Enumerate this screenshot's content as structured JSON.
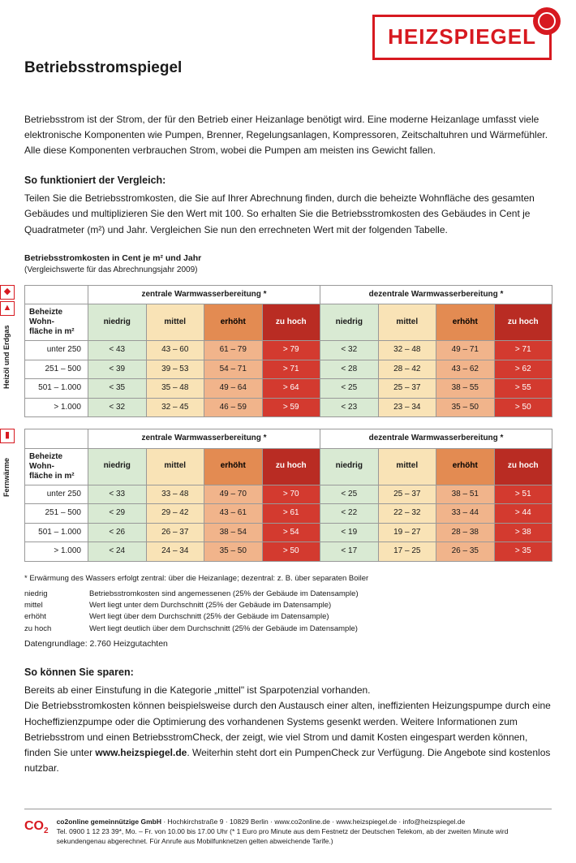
{
  "logo": {
    "text": "HEIZSPIEGEL"
  },
  "title": "Betriebsstromspiegel",
  "intro": "Betriebsstrom ist der Strom, der für den Betrieb einer Heizanlage benötigt wird. Eine moderne Heizanlage umfasst viele elektronische Komponenten wie Pumpen, Brenner, Regelungsanlagen, Kompressoren, Zeitschaltuhren und Wärmefühler. Alle diese Komponenten verbrauchen Strom, wobei die Pumpen am meisten ins Gewicht fallen.",
  "vergleich_title": "So funktioniert der Vergleich:",
  "vergleich_body": "Teilen Sie die Betriebsstromkosten, die Sie auf Ihrer Abrechnung finden, durch die beheizte Wohnfläche des gesamten Gebäudes und multiplizieren Sie den Wert mit 100. So erhalten Sie die Betriebsstromkosten des Gebäudes in Cent je Quadratmeter (m²) und Jahr. Vergleichen Sie nun den errechneten Wert mit der folgenden Tabelle.",
  "kosten_title": "Betriebsstromkosten in Cent je m² und Jahr",
  "kosten_sub": "(Vergleichswerte für das Abrechnungsjahr 2009)",
  "colors": {
    "niedrig": "#d9ead3",
    "mittel": "#f9e3b6",
    "erhoeht_cell": "#f1b48b",
    "erhoeht_head": "#e38b52",
    "zuhoch_cell": "#d33a2f",
    "zuhoch_head": "#b92c23",
    "border": "#999999",
    "brand": "#d71920",
    "text": "#1a1a1a",
    "bg": "#ffffff"
  },
  "group_headers": {
    "zentral": "zentrale Warmwasserbereitung *",
    "dezentral": "dezentrale Warmwasserbereitung *"
  },
  "cat_headers": {
    "wohn": "Beheizte Wohn-fläche in m²",
    "niedrig": "niedrig",
    "mittel": "mittel",
    "erhoeht": "erhöht",
    "zuhoch": "zu hoch"
  },
  "row_labels": [
    "unter 250",
    "251 –    500",
    "501 – 1.000",
    "> 1.000"
  ],
  "tables": [
    {
      "side_label": "Heizöl und Erdgas",
      "icons": [
        "droplet",
        "flame"
      ],
      "rows": [
        {
          "z": [
            "<  43",
            "43 – 60",
            "61 – 79",
            ">  79"
          ],
          "d": [
            "<  32",
            "32 – 48",
            "49 – 71",
            ">  71"
          ]
        },
        {
          "z": [
            "<  39",
            "39 – 53",
            "54 – 71",
            ">  71"
          ],
          "d": [
            "<  28",
            "28 – 42",
            "43 – 62",
            ">  62"
          ]
        },
        {
          "z": [
            "<  35",
            "35 – 48",
            "49 – 64",
            ">  64"
          ],
          "d": [
            "<  25",
            "25 – 37",
            "38 – 55",
            ">  55"
          ]
        },
        {
          "z": [
            "<  32",
            "32 – 45",
            "46 – 59",
            ">  59"
          ],
          "d": [
            "<  23",
            "23 – 34",
            "35 – 50",
            ">  50"
          ]
        }
      ]
    },
    {
      "side_label": "Fernwärme",
      "icons": [
        "radiator"
      ],
      "rows": [
        {
          "z": [
            "<  33",
            "33 – 48",
            "49 – 70",
            ">  70"
          ],
          "d": [
            "<  25",
            "25 – 37",
            "38 – 51",
            ">  51"
          ]
        },
        {
          "z": [
            "<  29",
            "29 – 42",
            "43 – 61",
            ">  61"
          ],
          "d": [
            "<  22",
            "22 – 32",
            "33 – 44",
            ">  44"
          ]
        },
        {
          "z": [
            "<  26",
            "26 – 37",
            "38 – 54",
            ">  54"
          ],
          "d": [
            "<  19",
            "19 – 27",
            "28 – 38",
            ">  38"
          ]
        },
        {
          "z": [
            "<  24",
            "24 – 34",
            "35 – 50",
            ">  50"
          ],
          "d": [
            "<  17",
            "17 – 25",
            "26 – 35",
            ">  35"
          ]
        }
      ]
    }
  ],
  "footnote": "* Erwärmung des Wassers erfolgt zentral: über die Heizanlage; dezentral: z. B. über separaten Boiler",
  "legend": [
    {
      "k": "niedrig",
      "v": "Betriebsstromkosten sind angemessenen (25% der Gebäude im Datensample)"
    },
    {
      "k": "mittel",
      "v": "Wert liegt unter dem Durchschnitt (25% der Gebäude im Datensample)"
    },
    {
      "k": "erhöht",
      "v": "Wert liegt über dem Durchschnitt (25% der Gebäude im Datensample)"
    },
    {
      "k": "zu hoch",
      "v": "Wert liegt deutlich über dem Durchschnitt (25% der Gebäude im Datensample)"
    }
  ],
  "daten": "Datengrundlage: 2.760 Heizgutachten",
  "sparen_title": "So können Sie sparen:",
  "sparen_body_1": "Bereits ab einer Einstufung in die Kategorie „mittel\" ist Sparpotenzial vorhanden.",
  "sparen_body_2a": "Die Betriebsstromkosten können beispielsweise durch den Austausch einer alten, ineffizienten Heizungspumpe durch eine Hocheffizienzpumpe oder die Optimierung des vorhandenen Systems gesenkt werden. Weitere Informationen zum Betriebsstrom und einen BetriebsstromCheck, der zeigt, wie viel Strom und damit Kosten eingespart werden können, finden Sie unter ",
  "sparen_link": "www.heizspiegel.de",
  "sparen_body_2b": ". Weiterhin steht dort ein PumpenCheck zur Verfügung. Die Angebote sind kostenlos nutzbar.",
  "footer": {
    "line1a": "co2online gemeinnützige GmbH",
    "line1b": " · Hochkirchstraße 9 · 10829 Berlin · www.co2online.de · www.heizspiegel.de · info@heizspiegel.de",
    "line2": "Tel. 0900 1 12 23 39*, Mo. – Fr. von 10.00 bis 17.00 Uhr  (* 1 Euro pro Minute aus dem Festnetz der Deutschen Telekom, ab der zweiten Minute wird sekundengenau abgerechnet. Für Anrufe aus Mobilfunknetzen gelten abweichende Tarife.)"
  }
}
